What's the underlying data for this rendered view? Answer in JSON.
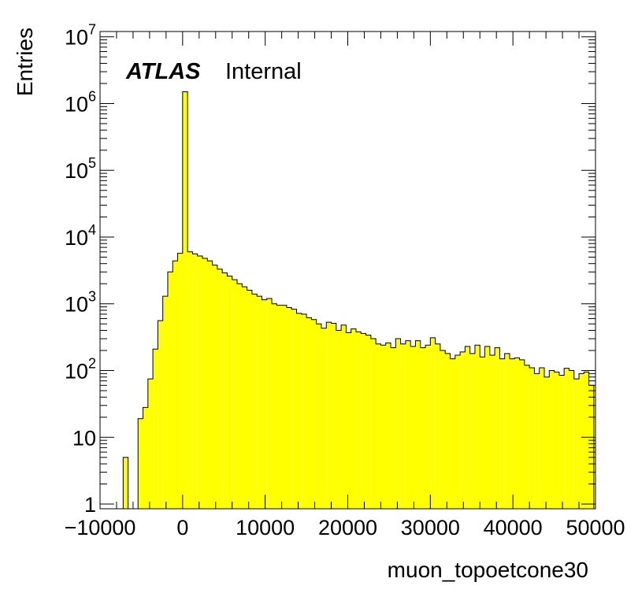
{
  "chart_data": {
    "type": "bar",
    "title": "",
    "label": {
      "experiment": "ATLAS",
      "status": "Internal"
    },
    "xlabel": "muon_topoetcone30",
    "ylabel": "Entries",
    "xlim": [
      -10000,
      50000
    ],
    "ylim": [
      0.85,
      12000000
    ],
    "ylog": true,
    "bin_width": 600,
    "fill_color": "#ffff00",
    "line_color": "#000000",
    "xticks": [
      -10000,
      0,
      10000,
      20000,
      30000,
      40000,
      50000
    ],
    "xtick_labels": [
      "−10000",
      "0",
      "10000",
      "20000",
      "30000",
      "40000",
      "50000"
    ],
    "yticks": [
      {
        "value": 1,
        "base": "1",
        "exp": ""
      },
      {
        "value": 10,
        "base": "10",
        "exp": ""
      },
      {
        "value": 100,
        "base": "10",
        "exp": "2"
      },
      {
        "value": 1000,
        "base": "10",
        "exp": "3"
      },
      {
        "value": 10000,
        "base": "10",
        "exp": "4"
      },
      {
        "value": 100000,
        "base": "10",
        "exp": "5"
      },
      {
        "value": 1000000,
        "base": "10",
        "exp": "6"
      },
      {
        "value": 10000000,
        "base": "10",
        "exp": "7"
      }
    ],
    "bins": [
      [
        -7200,
        5
      ],
      [
        -5400,
        19
      ],
      [
        -4800,
        28
      ],
      [
        -4200,
        75
      ],
      [
        -3600,
        210
      ],
      [
        -3000,
        560
      ],
      [
        -2400,
        1300
      ],
      [
        -1800,
        3000
      ],
      [
        -1200,
        4400
      ],
      [
        -600,
        5700
      ],
      [
        0,
        1500000
      ],
      [
        600,
        6000
      ],
      [
        1200,
        5600
      ],
      [
        1800,
        5200
      ],
      [
        2400,
        4800
      ],
      [
        3000,
        4400
      ],
      [
        3600,
        3800
      ],
      [
        4200,
        3300
      ],
      [
        4800,
        2900
      ],
      [
        5400,
        2600
      ],
      [
        6000,
        2300
      ],
      [
        6600,
        2000
      ],
      [
        7200,
        1800
      ],
      [
        7800,
        1600
      ],
      [
        8400,
        1400
      ],
      [
        9000,
        1300
      ],
      [
        9600,
        1150
      ],
      [
        10200,
        1200
      ],
      [
        10800,
        1000
      ],
      [
        11400,
        950
      ],
      [
        12000,
        950
      ],
      [
        12600,
        880
      ],
      [
        13200,
        830
      ],
      [
        13800,
        720
      ],
      [
        14400,
        700
      ],
      [
        15000,
        620
      ],
      [
        15600,
        580
      ],
      [
        16200,
        500
      ],
      [
        16800,
        430
      ],
      [
        17400,
        530
      ],
      [
        18000,
        510
      ],
      [
        18600,
        400
      ],
      [
        19200,
        480
      ],
      [
        19800,
        370
      ],
      [
        20400,
        420
      ],
      [
        21000,
        380
      ],
      [
        21600,
        360
      ],
      [
        22200,
        340
      ],
      [
        22800,
        300
      ],
      [
        23400,
        250
      ],
      [
        24000,
        240
      ],
      [
        24600,
        260
      ],
      [
        25200,
        220
      ],
      [
        25800,
        300
      ],
      [
        26400,
        250
      ],
      [
        27000,
        280
      ],
      [
        27600,
        230
      ],
      [
        28200,
        280
      ],
      [
        28800,
        220
      ],
      [
        29400,
        240
      ],
      [
        30000,
        310
      ],
      [
        30600,
        250
      ],
      [
        31200,
        200
      ],
      [
        31800,
        180
      ],
      [
        32400,
        150
      ],
      [
        33000,
        170
      ],
      [
        33600,
        190
      ],
      [
        34200,
        230
      ],
      [
        34800,
        180
      ],
      [
        35400,
        240
      ],
      [
        36000,
        160
      ],
      [
        36600,
        230
      ],
      [
        37200,
        170
      ],
      [
        37800,
        220
      ],
      [
        38400,
        150
      ],
      [
        39000,
        180
      ],
      [
        39600,
        150
      ],
      [
        40200,
        155
      ],
      [
        40800,
        145
      ],
      [
        41400,
        120
      ],
      [
        42000,
        110
      ],
      [
        42600,
        90
      ],
      [
        43200,
        110
      ],
      [
        43800,
        80
      ],
      [
        44400,
        100
      ],
      [
        45000,
        95
      ],
      [
        45600,
        85
      ],
      [
        46200,
        108
      ],
      [
        46800,
        100
      ],
      [
        47400,
        75
      ],
      [
        48000,
        90
      ],
      [
        48600,
        95
      ],
      [
        49200,
        60
      ]
    ]
  }
}
